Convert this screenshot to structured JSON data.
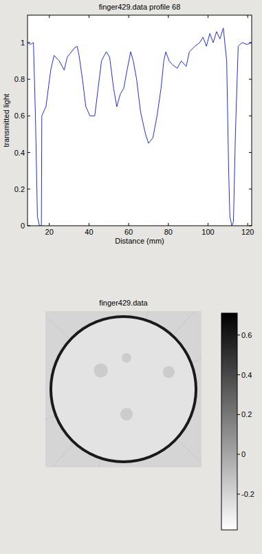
{
  "chart_data": [
    {
      "type": "line",
      "title": "finger429.data profile 68",
      "x_label": "Distance (mm)",
      "y_label": "transmitted light",
      "x": [
        9,
        10.5,
        12,
        13,
        14,
        15,
        16,
        16.2,
        18.3,
        20.7,
        22.4,
        25,
        27.5,
        29,
        32.6,
        34,
        35,
        36.7,
        38.4,
        40.5,
        42.9,
        44.6,
        46.3,
        48.7,
        50.4,
        52.4,
        54,
        55.8,
        57.5,
        59.2,
        61,
        62.3,
        64,
        66,
        68.5,
        70,
        72.2,
        74.3,
        76.3,
        77.7,
        78.7,
        80.4,
        82,
        84.5,
        86.5,
        89,
        90.6,
        93.4,
        95.8,
        97.5,
        99.2,
        100.9,
        102.6,
        104.3,
        106,
        107.7,
        109.4,
        110.4,
        111,
        112,
        112.8,
        113.8,
        115.2,
        117.2,
        119.6,
        122
      ],
      "series": [
        {
          "color": "#1f2fe0",
          "values": [
            1.0,
            0.99,
            1.0,
            0.6,
            0.05,
            0.0,
            0.0,
            0.6,
            0.65,
            0.85,
            0.93,
            0.9,
            0.85,
            0.92,
            0.97,
            0.98,
            0.93,
            0.8,
            0.65,
            0.6,
            0.6,
            0.75,
            0.9,
            0.95,
            0.92,
            0.75,
            0.65,
            0.72,
            0.75,
            0.85,
            0.95,
            0.9,
            0.8,
            0.62,
            0.5,
            0.45,
            0.48,
            0.6,
            0.75,
            0.9,
            0.95,
            0.9,
            0.88,
            0.86,
            0.9,
            0.87,
            0.95,
            0.98,
            1.0,
            1.03,
            0.98,
            1.05,
            1.0,
            1.06,
            1.02,
            1.08,
            0.9,
            0.3,
            0.05,
            0.0,
            0.02,
            0.5,
            0.98,
            1.0,
            0.99,
            1.0
          ]
        }
      ],
      "xlim": [
        9,
        122
      ],
      "xticks": [
        20,
        40,
        60,
        80,
        100,
        120
      ],
      "ylim": [
        0,
        1.15
      ],
      "yticks": [
        0,
        0.2,
        0.4,
        0.6,
        0.8,
        1
      ],
      "grid": false
    },
    {
      "type": "image",
      "title": "finger429.data",
      "levels": {
        "background": -0.2,
        "inside": -0.26,
        "inclusions": -0.13,
        "ring": 0.6
      },
      "colorbar": {
        "lim": [
          -0.38,
          0.71
        ],
        "ticks": [
          -0.2,
          0,
          0.2,
          0.4,
          0.6
        ]
      }
    }
  ]
}
